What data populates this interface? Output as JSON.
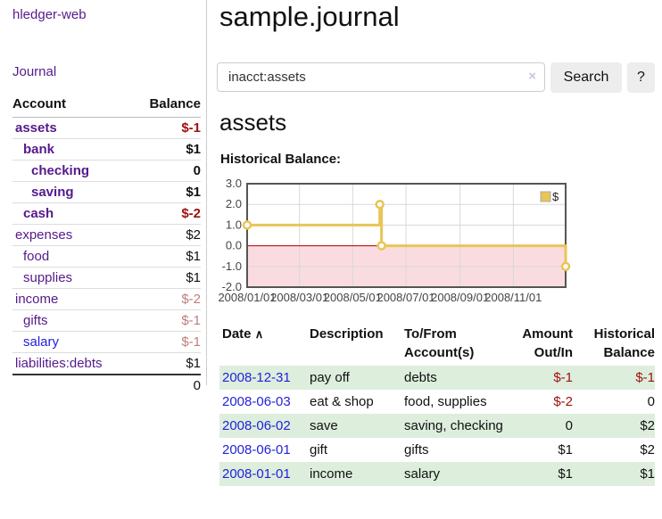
{
  "app": {
    "brand": "hledger-web",
    "nav_journal": "Journal"
  },
  "colors": {
    "link_purple": "#551a8b",
    "link_blue": "#2222dd",
    "negative_strong": "#a01010",
    "negative_muted": "#c17d7d",
    "row_stripe_green": "#ddeedd",
    "chart_line_gold": "#e9c556",
    "chart_negative_area": "#fadce0",
    "chart_zero_line": "#aa0000",
    "chart_grid": "#d8d8d8",
    "chart_border": "#555555"
  },
  "sidebar": {
    "header": {
      "account": "Account",
      "balance": "Balance"
    },
    "accounts": [
      {
        "name": "assets",
        "balance": "$-1",
        "level": 1,
        "name_style": "purple-bold",
        "balance_style": "neg-bold"
      },
      {
        "name": "bank",
        "balance": "$1",
        "level": 2,
        "name_style": "purple-bold",
        "balance_style": "bold"
      },
      {
        "name": "checking",
        "balance": "0",
        "level": 3,
        "name_style": "purple-bold",
        "balance_style": "bold"
      },
      {
        "name": "saving",
        "balance": "$1",
        "level": 3,
        "name_style": "purple-bold",
        "balance_style": "bold"
      },
      {
        "name": "cash",
        "balance": "$-2",
        "level": 2,
        "name_style": "purple-bold",
        "balance_style": "neg-bold"
      },
      {
        "name": "expenses",
        "balance": "$2",
        "level": 1,
        "name_style": "purple",
        "balance_style": "plain"
      },
      {
        "name": "food",
        "balance": "$1",
        "level": 2,
        "name_style": "purple",
        "balance_style": "plain"
      },
      {
        "name": "supplies",
        "balance": "$1",
        "level": 2,
        "name_style": "purple",
        "balance_style": "plain"
      },
      {
        "name": "income",
        "balance": "$-2",
        "level": 1,
        "name_style": "purple",
        "balance_style": "neg-muted"
      },
      {
        "name": "gifts",
        "balance": "$-1",
        "level": 2,
        "name_style": "purple",
        "balance_style": "neg-muted"
      },
      {
        "name": "salary",
        "balance": "$-1",
        "level": 2,
        "name_style": "blue",
        "balance_style": "neg-muted"
      },
      {
        "name": "liabilities:debts",
        "balance": "$1",
        "level": 1,
        "name_style": "purple",
        "balance_style": "plain"
      }
    ],
    "total": "0"
  },
  "header": {
    "title": "sample.journal"
  },
  "search": {
    "value": "inacct:assets",
    "clear_icon": "×",
    "button_label": "Search",
    "help_label": "?"
  },
  "account_page": {
    "title": "assets",
    "chart_label": "Historical Balance:"
  },
  "chart_data": {
    "type": "line",
    "step": true,
    "series": [
      {
        "name": "$",
        "points": [
          [
            "2008-01-01",
            1.0
          ],
          [
            "2008-06-01",
            2.0
          ],
          [
            "2008-06-03",
            0.0
          ],
          [
            "2008-12-31",
            -1.0
          ]
        ]
      }
    ],
    "ylim": [
      -2.0,
      3.0
    ],
    "yticks": [
      3.0,
      2.0,
      1.0,
      0.0,
      -1.0,
      -2.0
    ],
    "ytick_labels": [
      "3.0",
      "2.0",
      "1.0",
      "0.0",
      "-1.0",
      "-2.0"
    ],
    "xticks": [
      "2008-01-01",
      "2008-03-01",
      "2008-05-01",
      "2008-07-01",
      "2008-09-01",
      "2008-11-01"
    ],
    "xtick_labels": [
      "2008/01/01",
      "2008/03/01",
      "2008/05/01",
      "2008/07/01",
      "2008/09/01",
      "2008/11/01"
    ],
    "xrange": [
      "2008-01-01",
      "2008-12-31"
    ],
    "legend": {
      "label": "$",
      "position": "top-right"
    },
    "grid": true,
    "negative_region_shaded": true
  },
  "register": {
    "columns": [
      "Date",
      "Description",
      "To/From Account(s)",
      "Amount Out/In",
      "Historical Balance"
    ],
    "sort_icon": "∧",
    "rows": [
      {
        "date": "2008-12-31",
        "description": "pay off",
        "accounts": "debts",
        "amount": "$-1",
        "amount_negative": true,
        "balance": "$-1",
        "balance_negative": true
      },
      {
        "date": "2008-06-03",
        "description": "eat & shop",
        "accounts": "food, supplies",
        "amount": "$-2",
        "amount_negative": true,
        "balance": "0",
        "balance_negative": false
      },
      {
        "date": "2008-06-02",
        "description": "save",
        "accounts": "saving, checking",
        "amount": "0",
        "amount_negative": false,
        "balance": "$2",
        "balance_negative": false
      },
      {
        "date": "2008-06-01",
        "description": "gift",
        "accounts": "gifts",
        "amount": "$1",
        "amount_negative": false,
        "balance": "$2",
        "balance_negative": false
      },
      {
        "date": "2008-01-01",
        "description": "income",
        "accounts": "salary",
        "amount": "$1",
        "amount_negative": false,
        "balance": "$1",
        "balance_negative": false
      }
    ]
  }
}
